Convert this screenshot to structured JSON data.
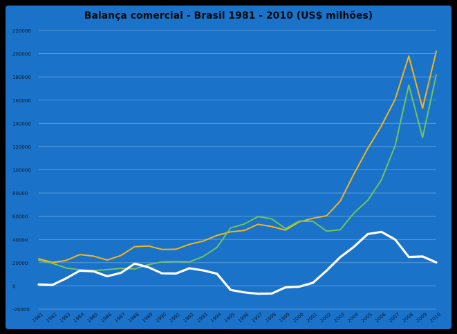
{
  "chart_data": {
    "type": "line",
    "title": "Balança comercial - Brasil 1981 - 2010 (US$ milhões)",
    "xlabel": "",
    "ylabel": "",
    "ylim": [
      -20000,
      220000
    ],
    "y_ticks": [
      -20000,
      0,
      20000,
      40000,
      60000,
      80000,
      100000,
      120000,
      140000,
      160000,
      180000,
      200000,
      220000
    ],
    "categories": [
      "1981",
      "1982",
      "1983",
      "1984",
      "1985",
      "1986",
      "1987",
      "1988",
      "1989",
      "1990",
      "1991",
      "1992",
      "1993",
      "1994",
      "1995",
      "1996",
      "1997",
      "1998",
      "1999",
      "2000",
      "2001",
      "2002",
      "2003",
      "2004",
      "2005",
      "2006",
      "2007",
      "2008",
      "2009",
      "2010"
    ],
    "grid": true,
    "legend": "none",
    "series": [
      {
        "color": "#f2b619",
        "values": [
          23300,
          20200,
          21900,
          27000,
          25600,
          22300,
          26200,
          33800,
          34400,
          31400,
          31600,
          35800,
          38600,
          43500,
          46500,
          47700,
          53000,
          51100,
          48000,
          55100,
          58200,
          60400,
          73100,
          96500,
          118300,
          137800,
          160600,
          197900,
          153000,
          201900
        ]
      },
      {
        "color": "#6ec55a",
        "values": [
          22100,
          19400,
          15400,
          13900,
          13200,
          14000,
          15100,
          14600,
          18300,
          20700,
          21000,
          20600,
          25300,
          33100,
          49900,
          53300,
          59700,
          57700,
          49300,
          55800,
          55600,
          47200,
          48300,
          62800,
          73600,
          91400,
          120600,
          173000,
          127700,
          181700
        ]
      },
      {
        "color": "#ffffff",
        "values": [
          1200,
          800,
          6500,
          13100,
          12500,
          8300,
          11200,
          19200,
          16100,
          10800,
          10600,
          15200,
          13300,
          10500,
          -3500,
          -5600,
          -6800,
          -6600,
          -1300,
          -700,
          2700,
          13200,
          24800,
          33700,
          44700,
          46500,
          40000,
          24900,
          25300,
          20200
        ]
      }
    ]
  }
}
